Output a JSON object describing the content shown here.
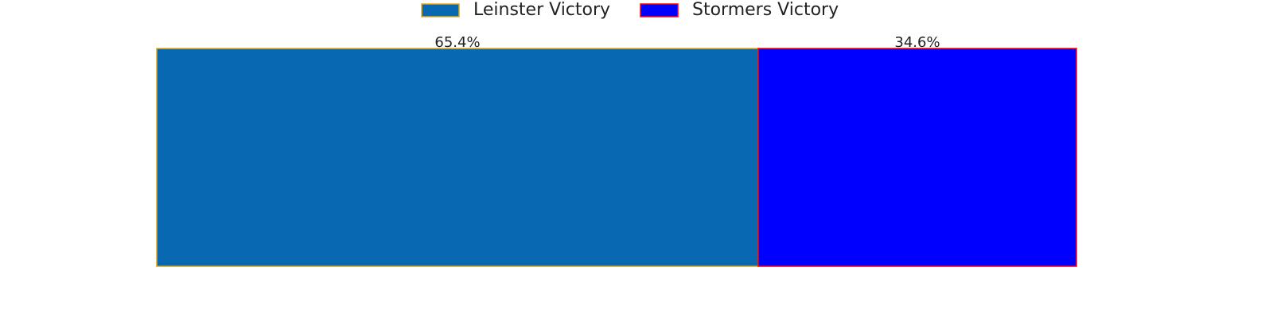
{
  "chart_data": {
    "type": "stacked-barh",
    "series": [
      {
        "name": "Leinster Victory",
        "color": "#0868b2",
        "edgecolor": "#e6a817",
        "values": [
          65.4
        ],
        "value_labels": [
          "65.4%"
        ]
      },
      {
        "name": "Stormers Victory",
        "color": "#0000ff",
        "edgecolor": "#ff0000",
        "values": [
          34.6
        ],
        "value_labels": [
          "34.6%"
        ]
      }
    ],
    "xlim": [
      0,
      100
    ],
    "legend": "upper center"
  }
}
